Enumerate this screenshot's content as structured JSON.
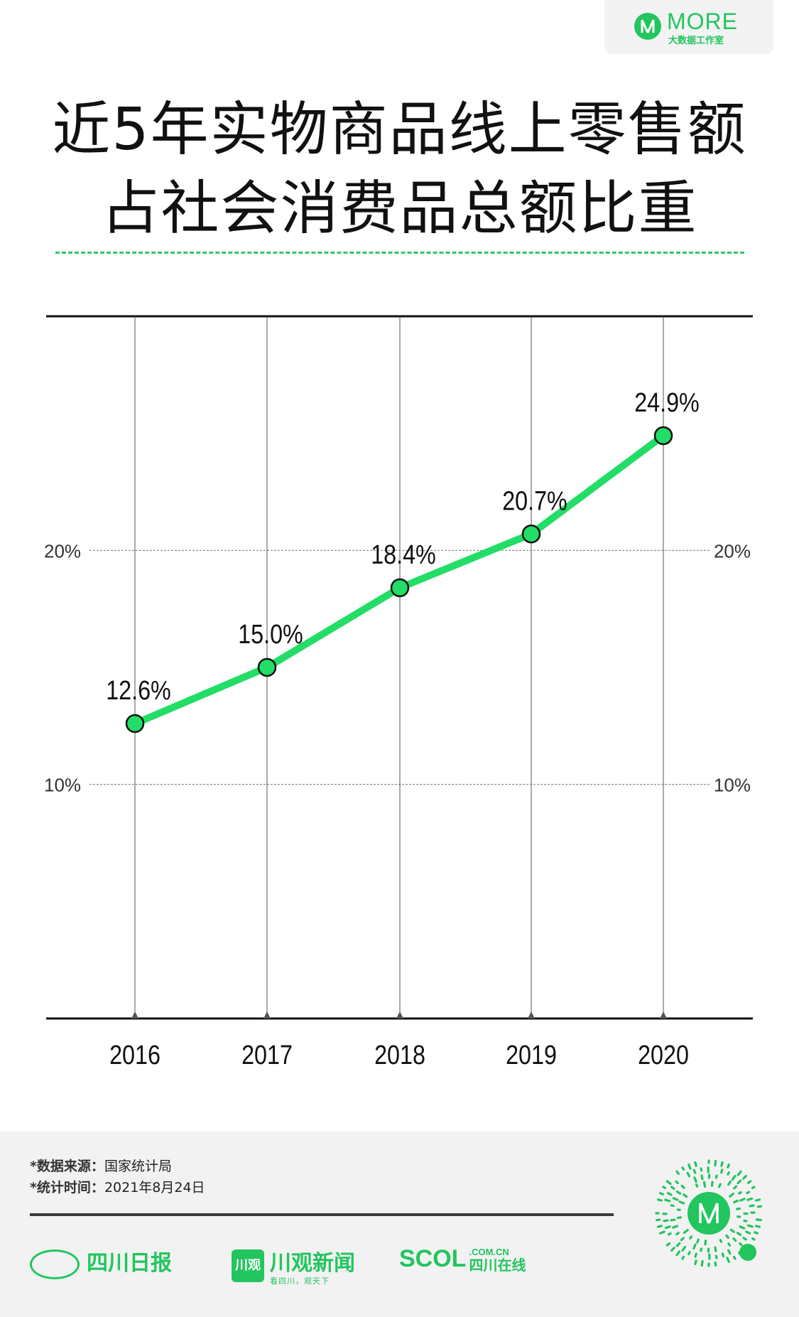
{
  "logo": {
    "name": "MORE",
    "sub": "大数据工作室",
    "icon": "more-logo-icon"
  },
  "title": {
    "line1": "近5年实物商品线上零售额",
    "line2": "占社会消费品总额比重"
  },
  "chart_data": {
    "type": "line",
    "categories": [
      "2016",
      "2017",
      "2018",
      "2019",
      "2020"
    ],
    "values": [
      12.6,
      15.0,
      18.4,
      20.7,
      24.9
    ],
    "value_labels": [
      "12.6%",
      "15.0%",
      "18.4%",
      "20.7%",
      "24.9%"
    ],
    "ylim": [
      0,
      30
    ],
    "yticks": [
      {
        "value": 10,
        "label": "10%"
      },
      {
        "value": 20,
        "label": "20%"
      }
    ],
    "line_color": "#22dd66",
    "marker_color": "#22dd66"
  },
  "footer": {
    "source_label": "*数据来源：",
    "source_value": "国家统计局",
    "time_label": "*统计时间：",
    "time_value": "2021年8月24日",
    "brands": [
      {
        "name": "四川日报"
      },
      {
        "icon_text": "川观",
        "name": "川观新闻",
        "sub": "看四川，观天下"
      },
      {
        "name": "SCOL",
        "domain": ".COM.CN",
        "sub": "四川在线"
      }
    ],
    "brand_color": "#22c55e",
    "qr_icon": "mini-program-qr-code-icon"
  }
}
